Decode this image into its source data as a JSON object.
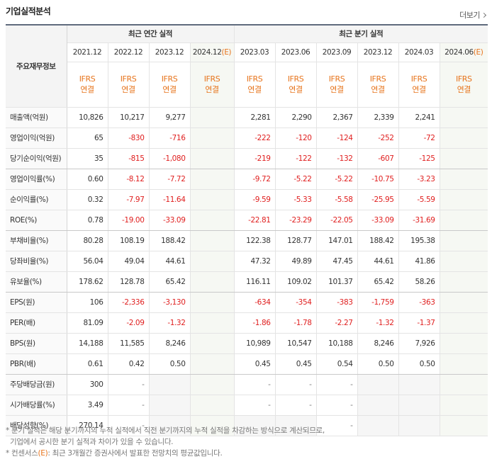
{
  "title": "기업실적분석",
  "more_label": "더보기",
  "header": {
    "row_label": "주요재무정보",
    "annual_label": "최근 연간 실적",
    "quarter_label": "최근 분기 실적",
    "annual_periods": [
      "2021.12",
      "2022.12",
      "2023.12",
      "2024.12"
    ],
    "quarter_periods": [
      "2023.03",
      "2023.06",
      "2023.09",
      "2023.12",
      "2024.03",
      "2024.06"
    ],
    "estimate_mark": "(E)",
    "ifrs_top": "IFRS",
    "ifrs_bottom": "연결"
  },
  "rows": [
    {
      "label": "매출액(억원)",
      "values": [
        "10,826",
        "10,217",
        "9,277",
        "",
        "2,281",
        "2,290",
        "2,367",
        "2,339",
        "2,241",
        ""
      ]
    },
    {
      "label": "영업이익(억원)",
      "values": [
        "65",
        "-830",
        "-716",
        "",
        "-222",
        "-120",
        "-124",
        "-252",
        "-72",
        ""
      ]
    },
    {
      "label": "당기순이익(억원)",
      "values": [
        "35",
        "-815",
        "-1,080",
        "",
        "-219",
        "-122",
        "-132",
        "-607",
        "-125",
        ""
      ]
    },
    {
      "label": "영업이익률(%)",
      "values": [
        "0.60",
        "-8.12",
        "-7.72",
        "",
        "-9.72",
        "-5.22",
        "-5.22",
        "-10.75",
        "-3.23",
        ""
      ]
    },
    {
      "label": "순이익률(%)",
      "values": [
        "0.32",
        "-7.97",
        "-11.64",
        "",
        "-9.59",
        "-5.33",
        "-5.58",
        "-25.95",
        "-5.59",
        ""
      ]
    },
    {
      "label": "ROE(%)",
      "values": [
        "0.78",
        "-19.00",
        "-33.09",
        "",
        "-22.81",
        "-23.29",
        "-22.05",
        "-33.09",
        "-31.69",
        ""
      ]
    },
    {
      "label": "부채비율(%)",
      "values": [
        "80.28",
        "108.19",
        "188.42",
        "",
        "122.38",
        "128.77",
        "147.01",
        "188.42",
        "195.38",
        ""
      ]
    },
    {
      "label": "당좌비율(%)",
      "values": [
        "56.04",
        "49.04",
        "44.61",
        "",
        "47.32",
        "49.89",
        "47.45",
        "44.61",
        "41.86",
        ""
      ]
    },
    {
      "label": "유보율(%)",
      "values": [
        "178.62",
        "128.78",
        "65.42",
        "",
        "116.11",
        "109.02",
        "101.37",
        "65.42",
        "58.26",
        ""
      ]
    },
    {
      "label": "EPS(원)",
      "values": [
        "106",
        "-2,336",
        "-3,130",
        "",
        "-634",
        "-354",
        "-383",
        "-1,759",
        "-363",
        ""
      ]
    },
    {
      "label": "PER(배)",
      "values": [
        "81.09",
        "-2.09",
        "-1.32",
        "",
        "-1.86",
        "-1.78",
        "-2.27",
        "-1.32",
        "-1.37",
        ""
      ]
    },
    {
      "label": "BPS(원)",
      "values": [
        "14,188",
        "11,585",
        "8,246",
        "",
        "10,989",
        "10,547",
        "10,188",
        "8,246",
        "7,926",
        ""
      ]
    },
    {
      "label": "PBR(배)",
      "values": [
        "0.61",
        "0.42",
        "0.50",
        "",
        "0.45",
        "0.45",
        "0.54",
        "0.50",
        "0.50",
        ""
      ]
    },
    {
      "label": "주당배당금(원)",
      "values": [
        "300",
        "-",
        "",
        "",
        "-",
        "-",
        "-",
        "",
        "",
        ""
      ]
    },
    {
      "label": "시가배당률(%)",
      "values": [
        "3.49",
        "-",
        "",
        "",
        "-",
        "-",
        "-",
        "",
        "",
        ""
      ]
    },
    {
      "label": "배당성향(%)",
      "values": [
        "270.14",
        "-",
        "",
        "",
        "",
        "",
        "-",
        "",
        "",
        ""
      ]
    }
  ],
  "footnotes": {
    "line1": "* 분기 실적은 해당 분기까지의 누적 실적에서 직전 분기까지의 누적 실적을 차감하는 방식으로 계산되므로,",
    "line2": "기업에서 공시한 분기 실적과 차이가 있을 수 있습니다.",
    "line3_prefix": "* 컨센서스",
    "line3_mark": "(E)",
    "line3_suffix": ": 최근 3개월간 증권사에서 발표한 전망치의 평균값입니다."
  },
  "colors": {
    "negative": "#e02020",
    "ifrs": "#e7741c",
    "estimate_bg": "#f6f8f3",
    "header_border": "#5f6b7d"
  }
}
